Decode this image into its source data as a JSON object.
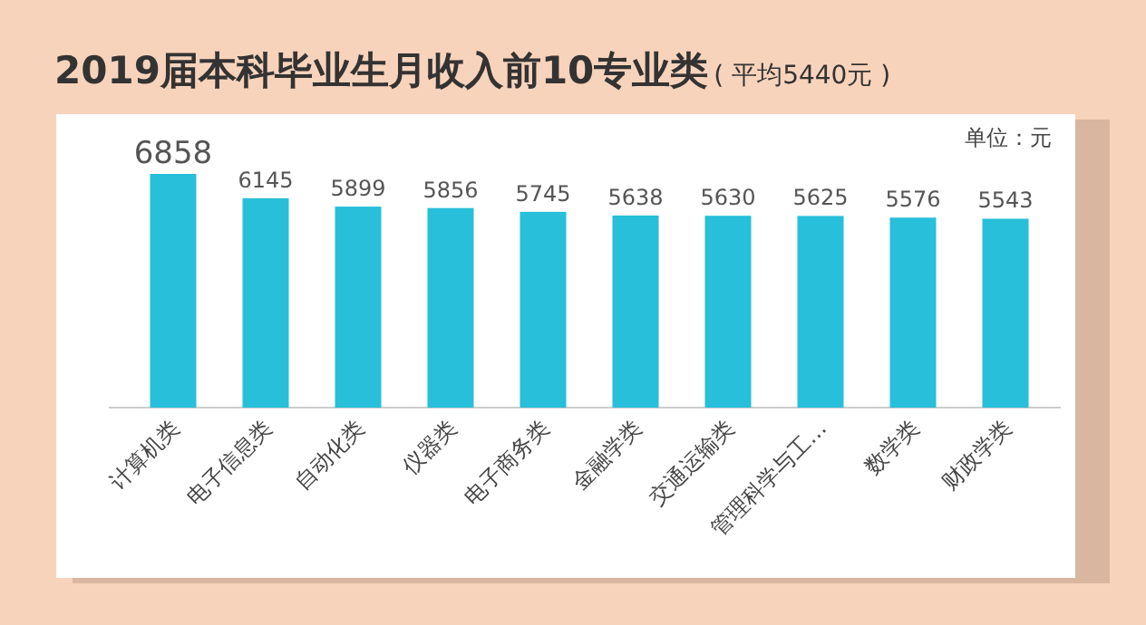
{
  "chart_data": {
    "type": "bar",
    "title": "2019届本科毕业生月收入前10专业类",
    "subtitle": "( 平均5440元 )",
    "annotations": [
      "单位：元"
    ],
    "categories": [
      "计算机类",
      "电子信息类",
      "自动化类",
      "仪器类",
      "电子商务类",
      "金融学类",
      "交通运输类",
      "管理科学与工…",
      "数学类",
      "财政学类"
    ],
    "values": [
      6858,
      6145,
      5899,
      5856,
      5745,
      5638,
      5630,
      5625,
      5576,
      5543
    ],
    "color": "#27bfd9",
    "data_labels": true
  }
}
